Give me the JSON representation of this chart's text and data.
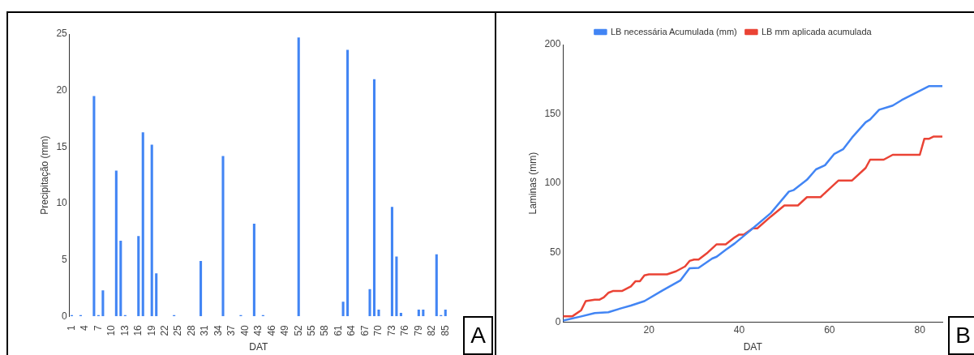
{
  "chart_data": [
    {
      "type": "bar",
      "xlabel": "DAT",
      "ylabel": "Precipitação (mm)",
      "annotations": [
        "A"
      ],
      "grid": false,
      "legend": false,
      "categories": [
        "1",
        null,
        null,
        "4",
        null,
        null,
        "7",
        null,
        null,
        "10",
        null,
        null,
        "13",
        null,
        null,
        "16",
        null,
        null,
        "19",
        null,
        null,
        "22",
        null,
        null,
        "25",
        null,
        null,
        "28",
        null,
        null,
        "31",
        null,
        null,
        "34",
        null,
        null,
        "37",
        null,
        null,
        "40",
        null,
        null,
        "43",
        null,
        null,
        "46",
        null,
        null,
        "49",
        null,
        null,
        "52",
        null,
        null,
        "55",
        null,
        null,
        "58",
        null,
        null,
        "61",
        null,
        null,
        "64",
        null,
        null,
        "67",
        null,
        null,
        "70",
        null,
        null,
        "73",
        null,
        null,
        "76",
        null,
        null,
        "79",
        null,
        null,
        "82",
        null,
        null,
        "85"
      ],
      "values": [
        0.1,
        0,
        0.1,
        0,
        0,
        19.5,
        0.1,
        2.3,
        0,
        0,
        12.9,
        6.7,
        0.1,
        0,
        0,
        7.1,
        16.3,
        0,
        15.2,
        3.8,
        0,
        0,
        0,
        0.1,
        0,
        0,
        0,
        0,
        0,
        4.9,
        0,
        0,
        0,
        0,
        14.2,
        0,
        0,
        0,
        0.1,
        0,
        0,
        8.2,
        0,
        0.1,
        0,
        0,
        0,
        0,
        0,
        0,
        0,
        24.7,
        0,
        0,
        0,
        0,
        0,
        0,
        0,
        0,
        0,
        1.3,
        23.6,
        0,
        0,
        0,
        0,
        2.4,
        21,
        0.6,
        0,
        0,
        9.7,
        5.3,
        0.3,
        0,
        0,
        0,
        0.6,
        0.6,
        0,
        0,
        5.5,
        0.1,
        0.6
      ],
      "color": "#4285f4",
      "ylim": [
        0,
        25
      ],
      "yticks": [
        0,
        5,
        10,
        15,
        20,
        25
      ]
    },
    {
      "type": "line",
      "xlabel": "DAT",
      "ylabel": "Laminas (mm)",
      "annotations": [
        "B"
      ],
      "grid": false,
      "legend": "top",
      "marker": "none",
      "xlim": [
        1,
        85
      ],
      "xticks": [
        20,
        40,
        60,
        80
      ],
      "ylim": [
        0,
        200
      ],
      "yticks": [
        0,
        50,
        100,
        150,
        200
      ],
      "series": [
        {
          "name": "LB necessária Acumulada (mm)",
          "color": "#4285f4",
          "x": [
            1,
            5,
            8,
            11,
            14,
            16,
            19,
            23,
            27,
            29,
            31,
            34,
            35,
            37,
            39,
            41,
            43,
            47,
            51,
            52,
            55,
            57,
            59,
            61,
            63,
            65,
            68,
            69,
            71,
            73,
            74,
            76,
            79,
            82,
            85
          ],
          "values": [
            1,
            4,
            6.4,
            7,
            10,
            11.8,
            15,
            22.7,
            30,
            38.7,
            39,
            45.7,
            47,
            52,
            56.6,
            62,
            67.5,
            78.5,
            94,
            95,
            102.5,
            110,
            113,
            121,
            124.5,
            133,
            144,
            146,
            153,
            155,
            156,
            160,
            165,
            170,
            170
          ]
        },
        {
          "name": "LB mm aplicada acumulada",
          "color": "#ea4335",
          "x": [
            1,
            3,
            5,
            6,
            8,
            9,
            10,
            11,
            12,
            14,
            16,
            17,
            18,
            19,
            20,
            24,
            26,
            28,
            29,
            30,
            31,
            33,
            35,
            37,
            39,
            40,
            41,
            43,
            44,
            47,
            50,
            53,
            55,
            58,
            60,
            62,
            65,
            68,
            69,
            72,
            74,
            80,
            81,
            82,
            83,
            85
          ],
          "values": [
            4,
            4,
            8.5,
            15,
            16,
            16,
            17.7,
            21,
            22.3,
            22.3,
            25.6,
            29.3,
            29.3,
            33.6,
            34.3,
            34.3,
            36.5,
            40,
            44,
            45,
            45,
            50,
            56,
            56,
            61,
            63,
            63,
            67.5,
            67.5,
            76,
            84,
            84,
            90,
            90,
            96,
            102,
            102,
            111,
            117,
            117,
            120.5,
            120.5,
            132,
            132,
            133.6,
            133.6
          ]
        }
      ]
    }
  ]
}
